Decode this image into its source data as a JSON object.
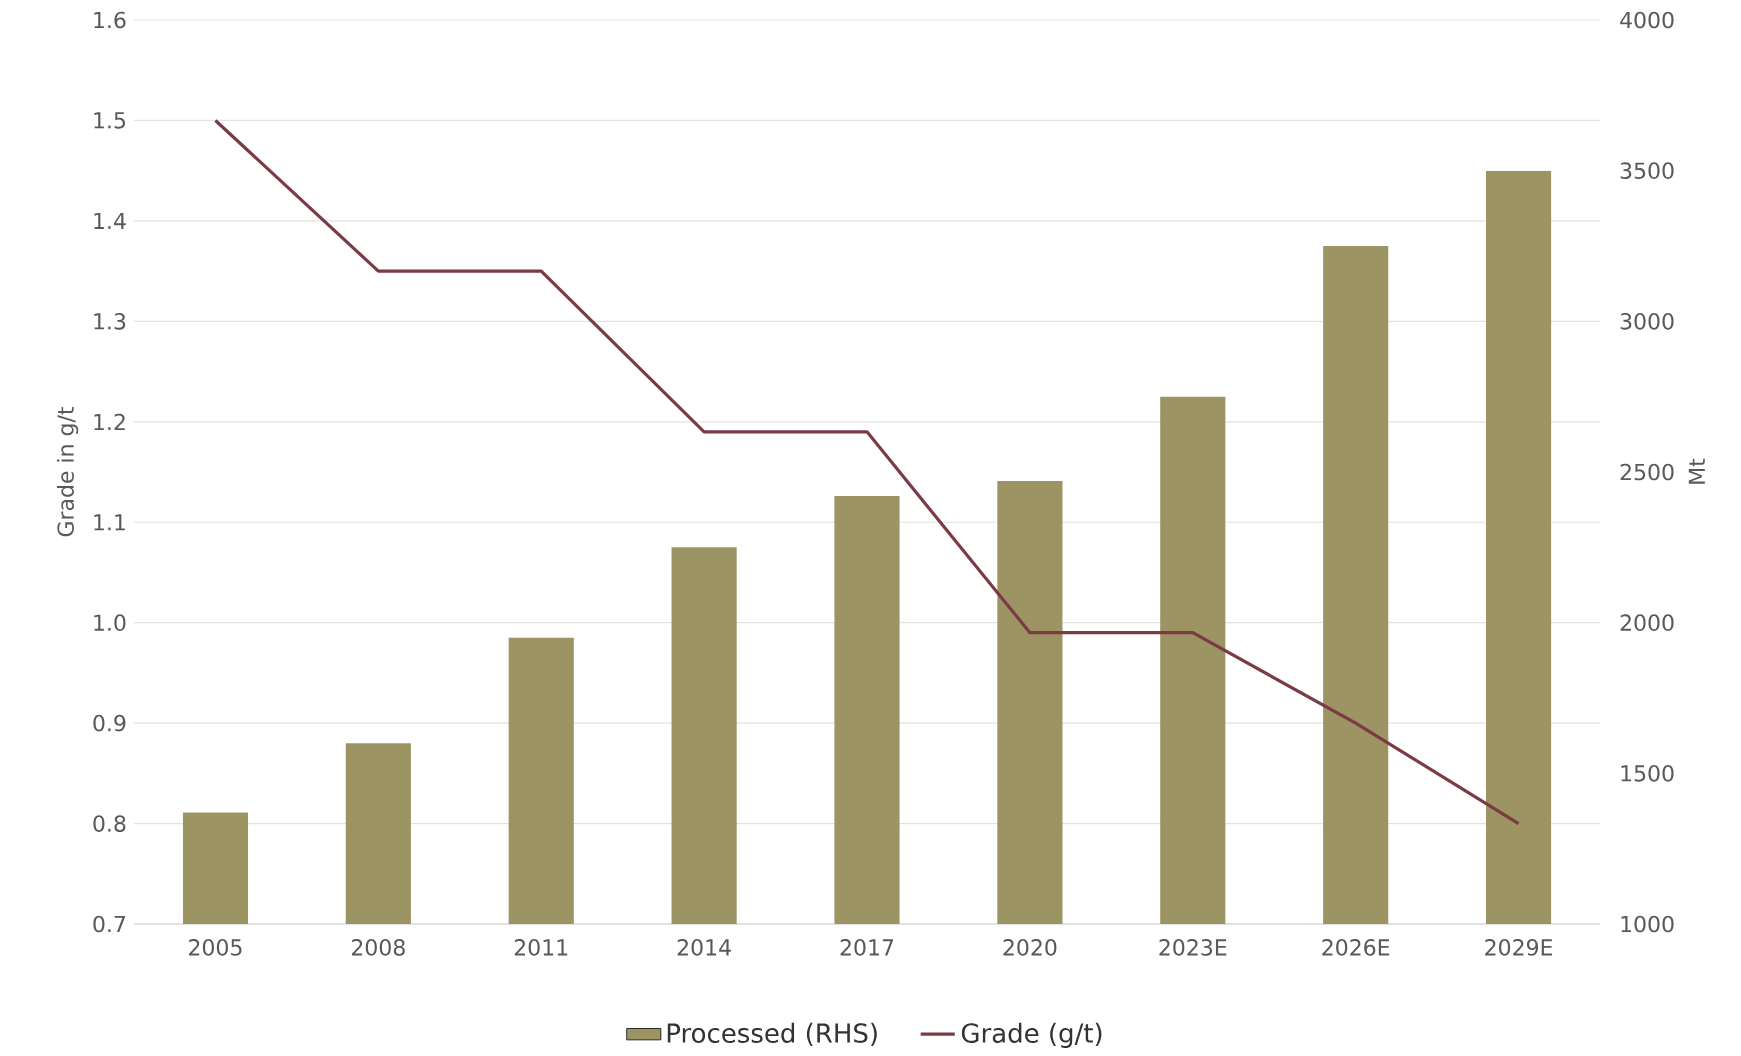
{
  "chart_data": {
    "type": "bar",
    "categories": [
      "2005",
      "2008",
      "2011",
      "2014",
      "2017",
      "2020",
      "2023E",
      "2026E",
      "2029E"
    ],
    "series": [
      {
        "name": "Processed (RHS)",
        "axis": "y2",
        "color": "#9c9563",
        "values": [
          1370,
          1600,
          1950,
          2250,
          2420,
          2470,
          2750,
          3250,
          3500
        ]
      },
      {
        "name": "Grade (g/t)",
        "type": "line",
        "color": "#7b3b44",
        "values": [
          1.5,
          1.35,
          1.35,
          1.19,
          1.19,
          0.99,
          0.99,
          0.9,
          0.8
        ]
      }
    ],
    "ylabel": "Grade in g/t",
    "y2label": "Mt",
    "ylim": [
      0.7,
      1.6
    ],
    "yticks": [
      {
        "value": 0.7,
        "label": "0.7"
      },
      {
        "value": 0.8,
        "label": "0.8"
      },
      {
        "value": 0.9,
        "label": "0.9"
      },
      {
        "value": 1.0,
        "label": "1.0"
      },
      {
        "value": 1.1,
        "label": "1.1"
      },
      {
        "value": 1.2,
        "label": "1.2"
      },
      {
        "value": 1.3,
        "label": "1.3"
      },
      {
        "value": 1.4,
        "label": "1.4"
      },
      {
        "value": 1.5,
        "label": "1.5"
      },
      {
        "value": 1.6,
        "label": "1.6"
      }
    ],
    "y2lim": [
      1000,
      4000
    ],
    "y2ticks": [
      1000,
      1500,
      2000,
      2500,
      3000,
      3500,
      4000
    ],
    "grid": "y",
    "legend": "bottom"
  }
}
